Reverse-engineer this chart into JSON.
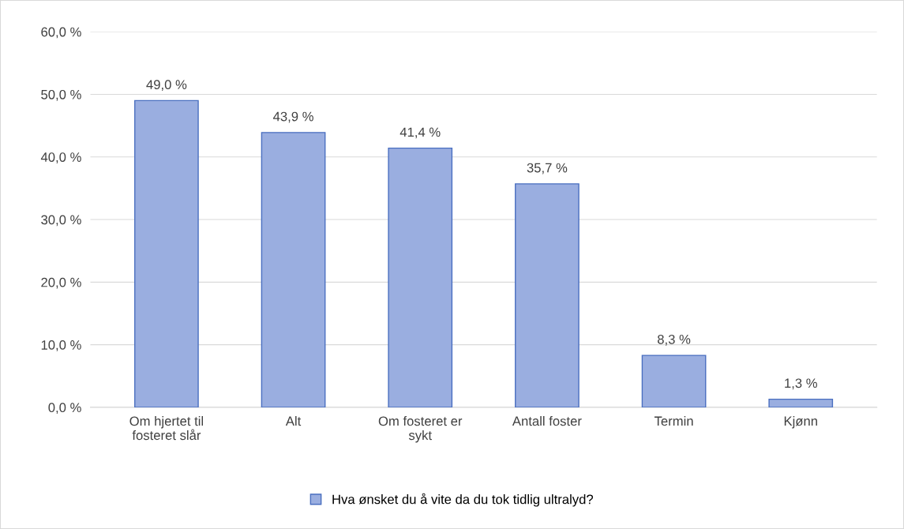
{
  "chart_data": {
    "type": "bar",
    "categories": [
      "Om hjertet til\nfosteret slår",
      "Alt",
      "Om fosteret er\nsykt",
      "Antall foster",
      "Termin",
      "Kjønn"
    ],
    "series": [
      {
        "name": "Hva ønsket du å vite da du tok tidlig ultralyd?",
        "color": "#9aaee0",
        "values": [
          49.0,
          43.9,
          41.4,
          35.7,
          8.3,
          1.3
        ],
        "value_labels": [
          "49,0 %",
          "43,9 %",
          "41,4 %",
          "35,7 %",
          "8,3 %",
          "1,3 %"
        ]
      }
    ],
    "ylim": [
      0,
      60
    ],
    "yticks": [
      {
        "value": 0,
        "label": "0,0 %"
      },
      {
        "value": 10,
        "label": "10,0 %"
      },
      {
        "value": 20,
        "label": "20,0 %"
      },
      {
        "value": 30,
        "label": "30,0 %"
      },
      {
        "value": 40,
        "label": "40,0 %"
      },
      {
        "value": 50,
        "label": "50,0 %"
      },
      {
        "value": 60,
        "label": "60,0 %"
      }
    ],
    "grid": "y",
    "legend": "bottom"
  }
}
